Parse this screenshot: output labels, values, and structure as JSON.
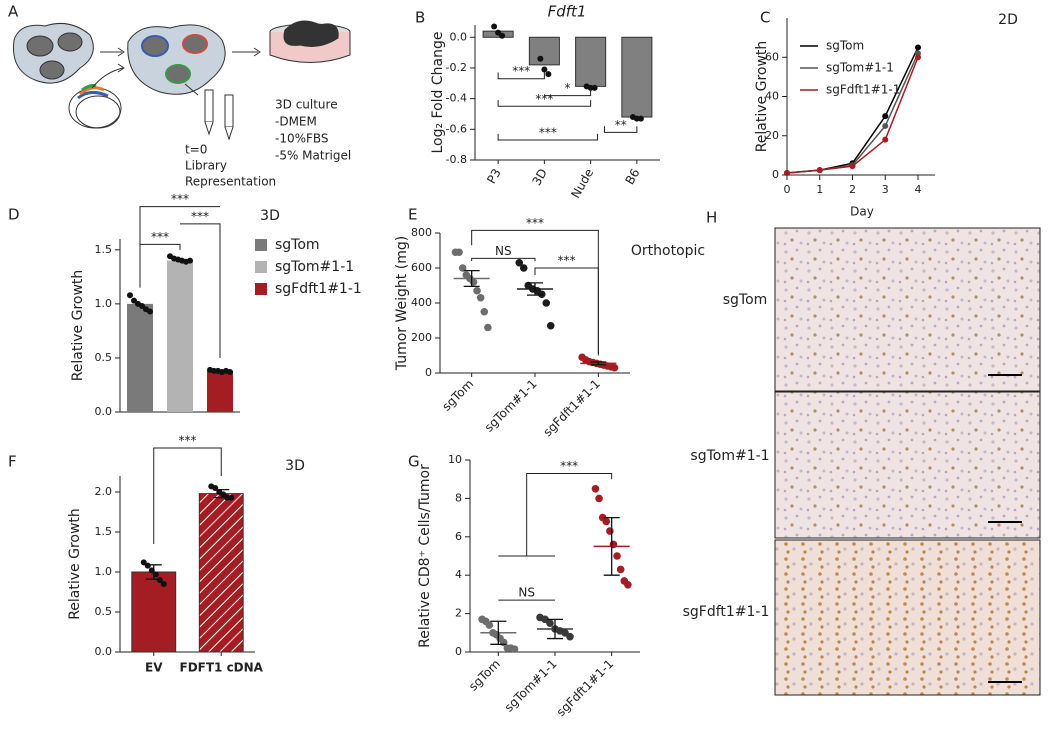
{
  "panels": {
    "labels": [
      "A",
      "B",
      "C",
      "D",
      "E",
      "F",
      "G",
      "H"
    ]
  },
  "diagram": {
    "texts": [
      "t=0",
      "Library",
      "Representation",
      "3D culture",
      "-DMEM",
      "-10%FBS",
      "-5% Matrigel"
    ]
  },
  "images": {
    "labels": [
      "sgTom",
      "sgTom#1-1",
      "sgFdft1#1-1"
    ]
  },
  "chart_data": [
    {
      "type": "bar",
      "title": "Fdft1",
      "ylabel": "Log₂ Fold Change",
      "categories": [
        "P3",
        "3D",
        "Nude",
        "B6"
      ],
      "values": [
        0.04,
        -0.18,
        -0.32,
        -0.52
      ],
      "points": [
        [
          0.07,
          0.03,
          0.01
        ],
        [
          -0.14,
          -0.21,
          -0.24
        ],
        [
          -0.32,
          -0.33,
          -0.33
        ],
        [
          -0.52,
          -0.53,
          -0.53
        ]
      ],
      "color": "#808080",
      "xtick_rotation": -60,
      "ylim": [
        -0.8,
        0.08
      ],
      "yticks": [
        {
          "value": 0,
          "label": "0.0"
        },
        -0.2,
        -0.4,
        -0.6,
        -0.8
      ],
      "annotations": [
        "***",
        "***",
        "*",
        "***",
        "**"
      ]
    },
    {
      "type": "line",
      "subtitle": "2D",
      "xlabel": "Day",
      "ylabel": "Relative Growth",
      "x": [
        0,
        1,
        2,
        3,
        4
      ],
      "xlim": [
        0,
        4
      ],
      "xticks": [
        0,
        1,
        2,
        3,
        4
      ],
      "ylim": [
        0,
        80
      ],
      "yticks": [
        0,
        20,
        40,
        60
      ],
      "legend": "upper left",
      "series": [
        {
          "name": "sgTom",
          "color": "#000000",
          "values": [
            1,
            2.5,
            6,
            30,
            65
          ]
        },
        {
          "name": "sgTom#1-1",
          "color": "#555555",
          "values": [
            1,
            2.5,
            5,
            25,
            62
          ]
        },
        {
          "name": "sgFdft1#1-1",
          "color": "#a31d23",
          "values": [
            1,
            2.5,
            4.5,
            18,
            60
          ]
        }
      ]
    },
    {
      "type": "bar",
      "subtitle": "3D",
      "ylabel": "Relative Growth",
      "legend": "right",
      "ylim": [
        0,
        1.6
      ],
      "yticks": [
        {
          "value": 0,
          "label": "0.0"
        },
        0.5,
        {
          "value": 1,
          "label": "1.0"
        },
        1.5
      ],
      "series": [
        {
          "name": "sgTom",
          "color": "#7a7a7a",
          "values": [
            1.0
          ],
          "points": [
            [
              1.08,
              1.03,
              1.0,
              0.98,
              0.95,
              0.93
            ]
          ]
        },
        {
          "name": "sgTom#1-1",
          "color": "#b3b3b3",
          "values": [
            1.4
          ],
          "points": [
            [
              1.44,
              1.42,
              1.41,
              1.4,
              1.39,
              1.4
            ]
          ]
        },
        {
          "name": "sgFdft1#1-1",
          "color": "#a31d23",
          "values": [
            0.38
          ],
          "points": [
            [
              0.39,
              0.38,
              0.38,
              0.37,
              0.38,
              0.37
            ]
          ]
        }
      ],
      "annotations": [
        "***",
        "***",
        "***"
      ]
    },
    {
      "type": "strip",
      "subtitle": "Orthotopic",
      "ylabel": "Tumor Weight (mg)",
      "categories": [
        "sgTom",
        "sgTom#1-1",
        "sgFdft1#1-1"
      ],
      "values": [
        540,
        480,
        55
      ],
      "errors": [
        45,
        35,
        8
      ],
      "points": [
        [
          690,
          690,
          600,
          560,
          540,
          520,
          470,
          430,
          350,
          260
        ],
        [
          630,
          600,
          500,
          480,
          470,
          450,
          400,
          270
        ],
        [
          90,
          75,
          65,
          60,
          55,
          50,
          45,
          40,
          35,
          30
        ]
      ],
      "colors": [
        "#6d6d6d",
        "#1c1c1c",
        "#a31d23"
      ],
      "xtick_rotation": -45,
      "ylim": [
        0,
        800
      ],
      "yticks": [
        0,
        200,
        400,
        600,
        800
      ],
      "annotations": [
        "***",
        "NS",
        "***"
      ]
    },
    {
      "type": "bar",
      "subtitle": "3D",
      "ylabel": "Relative Growth",
      "categories": [
        "EV",
        "FDFT1 cDNA"
      ],
      "values": [
        1.0,
        1.98
      ],
      "errors": [
        0.09,
        0.05
      ],
      "points": [
        [
          1.12,
          1.08,
          1.02,
          0.97,
          0.9,
          0.85
        ],
        [
          2.07,
          2.05,
          2.0,
          1.97,
          1.93,
          1.93
        ]
      ],
      "colors": [
        "#a31d23",
        "#a31d23"
      ],
      "hatch": [
        false,
        true
      ],
      "ylim": [
        0,
        2.2
      ],
      "yticks": [
        {
          "value": 0,
          "label": "0.0"
        },
        0.5,
        {
          "value": 1,
          "label": "1.0"
        },
        1.5,
        {
          "value": 2,
          "label": "2.0"
        }
      ],
      "annotations": [
        "***"
      ]
    },
    {
      "type": "strip",
      "ylabel": "Relative CD8⁺ Cells/Tumor",
      "categories": [
        "sgTom",
        "sgTom#1-1",
        "sgFdft1#1-1"
      ],
      "values": [
        1.0,
        1.2,
        5.5
      ],
      "errors": [
        0.6,
        0.5,
        1.5
      ],
      "points": [
        [
          1.7,
          1.6,
          1.4,
          1.0,
          0.9,
          0.7,
          0.5,
          0.2,
          0.2,
          0.15
        ],
        [
          1.8,
          1.7,
          1.5,
          1.2,
          1.1,
          1.0,
          0.8
        ],
        [
          8.5,
          8.0,
          7.0,
          6.8,
          6.3,
          5.6,
          5.0,
          4.3,
          3.7,
          3.5
        ]
      ],
      "colors": [
        "#6d6d6d",
        "#3a3a3a",
        "#a31d23"
      ],
      "xtick_rotation": -45,
      "ylim": [
        0,
        10
      ],
      "yticks": [
        0,
        2,
        4,
        6,
        8,
        10
      ],
      "annotations": [
        "NS",
        "***"
      ]
    }
  ]
}
